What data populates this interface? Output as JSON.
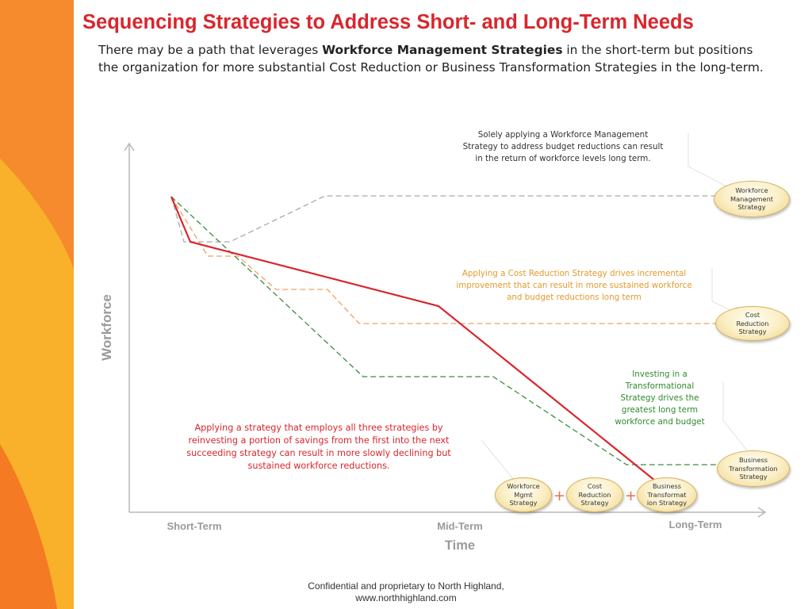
{
  "header": {
    "title": "Sequencing Strategies to Address Short- and Long-Term Needs",
    "intro_before": "There may be a path that leverages ",
    "intro_bold": "Workforce Management Strategies",
    "intro_after": " in the short-term but positions the organization for more substantial Cost Reduction or Business Transformation Strategies in the long-term."
  },
  "diagram": {
    "y_axis_label": "Workforce",
    "x_axis_label": "Time",
    "x_ticks": [
      "Short-Term",
      "Mid-Term",
      "Long-Term"
    ],
    "notes": {
      "workforce_management": "Solely applying a Workforce Management Strategy to address budget reductions can result in the return of workforce levels long term.",
      "cost_reduction": "Applying a Cost Reduction Strategy drives incremental improvement that can result in more sustained workforce and budget reductions long term",
      "transformation": "Investing in a Transformational Strategy drives the greatest long term workforce and budget",
      "combined": "Applying a strategy that employs all three strategies by reinvesting a portion of savings from the first into the next succeeding strategy can result in more slowly declining but sustained workforce reductions."
    },
    "bubbles_right": [
      [
        "Workforce",
        "Management",
        "Strategy"
      ],
      [
        "Cost",
        "Reduction",
        "Strategy"
      ],
      [
        "Business",
        "Transformation",
        "Strategy"
      ]
    ],
    "bubbles_bottom": [
      [
        "Workforce",
        "Mgmt",
        "Strategy"
      ],
      [
        "Cost",
        "Reduction",
        "Strategy"
      ],
      [
        "Business",
        "Transformat",
        "ion Strategy"
      ]
    ],
    "plus_symbol": "+",
    "colors": {
      "workforce_management": "#a9a9a9",
      "cost_reduction": "#f0a060",
      "transformation": "#3f8a3f",
      "combined": "#d9262d",
      "axis": "#b8b8b8"
    }
  },
  "footer": {
    "line1": "Confidential and proprietary to North Highland,",
    "line2": "www.northhighland.com"
  }
}
